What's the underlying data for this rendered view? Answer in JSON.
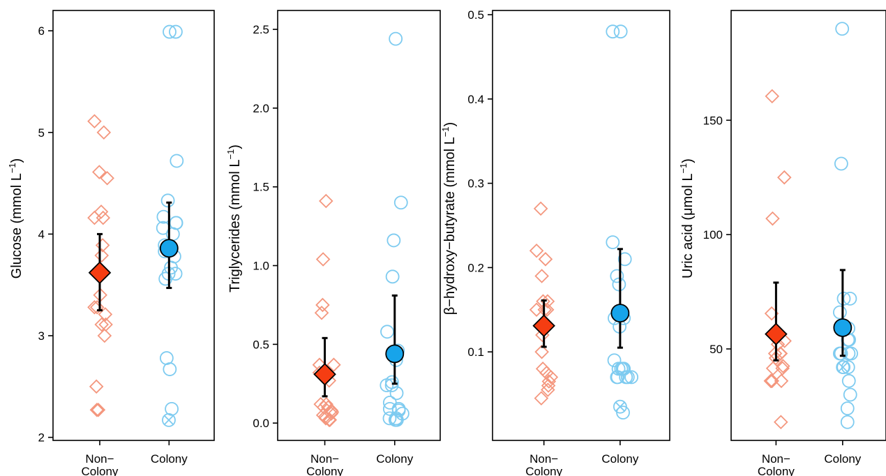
{
  "colors": {
    "noncolony_points": "#f4977e",
    "colony_points": "#7ecbf0",
    "noncolony_mean": "#f53d12",
    "colony_mean": "#17a4ea",
    "axis": "#000000"
  },
  "chart_data": [
    {
      "type": "scatter",
      "ylabel_main": "Glucose (mmol L",
      "ylabel_sup": "−1",
      "ylabel_end": ")",
      "ylim": [
        1.97,
        6.2
      ],
      "yticks": [
        2,
        3,
        4,
        5,
        6
      ],
      "ytick_labels": [
        "2",
        "3",
        "4",
        "5",
        "6"
      ],
      "categories": [
        "Non−\nColony",
        "Colony"
      ],
      "series": [
        {
          "name": "Non−Colony",
          "marker": "diamond",
          "points": [
            [
              -0.22,
              5.11
            ],
            [
              0.17,
              5.0
            ],
            [
              -0.02,
              4.61
            ],
            [
              0.31,
              4.55
            ],
            [
              0.06,
              4.22
            ],
            [
              -0.22,
              4.16
            ],
            [
              0.14,
              4.16
            ],
            [
              0.12,
              3.89
            ],
            [
              0.08,
              3.79
            ],
            [
              0.02,
              3.4
            ],
            [
              -0.22,
              3.28
            ],
            [
              -0.11,
              3.28
            ],
            [
              0.23,
              3.21
            ],
            [
              0.25,
              3.11
            ],
            [
              0.08,
              3.11
            ],
            [
              0.2,
              3.0
            ],
            [
              -0.14,
              2.5
            ],
            [
              -0.12,
              2.27
            ],
            [
              -0.06,
              2.27
            ]
          ],
          "mean": 3.62,
          "err_low": 3.25,
          "err_high": 4.0
        },
        {
          "name": "Colony",
          "marker": "circle",
          "points": [
            [
              0.02,
              5.99
            ],
            [
              0.28,
              5.99
            ],
            [
              0.32,
              4.72
            ],
            [
              -0.23,
              4.17
            ],
            [
              -0.05,
              4.33
            ],
            [
              0.29,
              4.11
            ],
            [
              0.3,
              4.11
            ],
            [
              -0.25,
              4.06
            ],
            [
              0.16,
              4.0
            ],
            [
              -0.18,
              3.89
            ],
            [
              -0.18,
              3.83
            ],
            [
              0.22,
              3.78
            ],
            [
              0.08,
              3.67
            ],
            [
              -0.02,
              3.61
            ],
            [
              0.27,
              3.61
            ],
            [
              -0.15,
              3.56
            ],
            [
              -0.1,
              2.78
            ],
            [
              0.03,
              2.67
            ],
            [
              0.11,
              2.28
            ],
            [
              -0.01,
              2.17
            ]
          ],
          "crossed": [
            [
              -0.01,
              2.17
            ]
          ],
          "mean": 3.86,
          "err_low": 3.47,
          "err_high": 4.31
        }
      ]
    },
    {
      "type": "scatter",
      "ylabel_main": "Triglycerides (mmol L",
      "ylabel_sup": "−1",
      "ylabel_end": ")",
      "ylim": [
        -0.11,
        2.62
      ],
      "yticks": [
        0,
        0.5,
        1.0,
        1.5,
        2.0,
        2.5
      ],
      "ytick_labels": [
        "0.0",
        "0.5",
        "1.0",
        "1.5",
        "2.0",
        "2.5"
      ],
      "categories": [
        "Non−\nColony",
        "Colony"
      ],
      "series": [
        {
          "name": "Non−Colony",
          "marker": "diamond",
          "points": [
            [
              0.05,
              1.41
            ],
            [
              -0.07,
              1.04
            ],
            [
              -0.09,
              0.75
            ],
            [
              -0.13,
              0.7
            ],
            [
              -0.22,
              0.37
            ],
            [
              0.37,
              0.37
            ],
            [
              -0.22,
              0.32
            ],
            [
              0.18,
              0.27
            ],
            [
              -0.17,
              0.12
            ],
            [
              0.06,
              0.12
            ],
            [
              -0.04,
              0.1
            ],
            [
              0.14,
              0.1
            ],
            [
              0.27,
              0.08
            ],
            [
              0.3,
              0.07
            ],
            [
              0.27,
              0.06
            ],
            [
              -0.07,
              0.05
            ],
            [
              0.01,
              0.04
            ],
            [
              0.04,
              0.03
            ],
            [
              0.18,
              0.02
            ],
            [
              0.21,
              0.02
            ]
          ],
          "mean": 0.31,
          "err_low": 0.17,
          "err_high": 0.54
        },
        {
          "name": "Colony",
          "marker": "circle",
          "points": [
            [
              0.04,
              2.44
            ],
            [
              0.26,
              1.4
            ],
            [
              -0.04,
              1.16
            ],
            [
              -0.09,
              0.93
            ],
            [
              -0.31,
              0.58
            ],
            [
              0.13,
              0.46
            ],
            [
              0.06,
              0.4
            ],
            [
              -0.11,
              0.26
            ],
            [
              -0.33,
              0.24
            ],
            [
              -0.12,
              0.24
            ],
            [
              -0.2,
              0.13
            ],
            [
              0.08,
              0.19
            ],
            [
              -0.2,
              0.09
            ],
            [
              0.17,
              0.09
            ],
            [
              0.17,
              0.08
            ],
            [
              0.32,
              0.06
            ],
            [
              -0.21,
              0.03
            ],
            [
              0.06,
              0.03
            ],
            [
              0.03,
              0.02
            ],
            [
              0.09,
              0.02
            ]
          ],
          "mean": 0.44,
          "err_low": 0.25,
          "err_high": 0.81
        }
      ]
    },
    {
      "type": "scatter",
      "ylabel_main": "β−hydroxy−butyrate (mmol L",
      "ylabel_sup": "−1",
      "ylabel_end": ")",
      "ylim": [
        -0.005,
        0.505
      ],
      "yticks": [
        0.1,
        0.2,
        0.3,
        0.4,
        0.5
      ],
      "ytick_labels": [
        "0.1",
        "0.2",
        "0.3",
        "0.4",
        "0.5"
      ],
      "categories": [
        "Non−\nColony",
        "Colony"
      ],
      "series": [
        {
          "name": "Non−Colony",
          "marker": "diamond",
          "points": [
            [
              -0.12,
              0.27
            ],
            [
              -0.28,
              0.22
            ],
            [
              0.06,
              0.21
            ],
            [
              -0.08,
              0.19
            ],
            [
              -0.03,
              0.16
            ],
            [
              0.14,
              0.16
            ],
            [
              -0.28,
              0.15
            ],
            [
              0.12,
              0.15
            ],
            [
              0.03,
              0.15
            ],
            [
              -0.06,
              0.12
            ],
            [
              -0.08,
              0.1
            ],
            [
              -0.04,
              0.08
            ],
            [
              0.1,
              0.075
            ],
            [
              0.27,
              0.07
            ],
            [
              0.19,
              0.065
            ],
            [
              0.17,
              0.06
            ],
            [
              0.15,
              0.055
            ],
            [
              -0.1,
              0.045
            ]
          ],
          "mean": 0.131,
          "err_low": 0.106,
          "err_high": 0.161
        },
        {
          "name": "Colony",
          "marker": "circle",
          "points": [
            [
              -0.28,
              0.48
            ],
            [
              0.02,
              0.48
            ],
            [
              -0.28,
              0.23
            ],
            [
              0.18,
              0.21
            ],
            [
              -0.12,
              0.19
            ],
            [
              -0.04,
              0.18
            ],
            [
              -0.21,
              0.14
            ],
            [
              0.14,
              0.14
            ],
            [
              -0.02,
              0.13
            ],
            [
              -0.22,
              0.09
            ],
            [
              -0.06,
              0.08
            ],
            [
              0.04,
              0.08
            ],
            [
              0.1,
              0.08
            ],
            [
              0.14,
              0.08
            ],
            [
              -0.12,
              0.07
            ],
            [
              -0.09,
              0.07
            ],
            [
              0.22,
              0.07
            ],
            [
              0.29,
              0.07
            ],
            [
              0.43,
              0.07
            ],
            [
              0.0,
              0.035
            ],
            [
              0.11,
              0.028
            ]
          ],
          "crossed": [
            [
              0.0,
              0.035
            ]
          ],
          "mean": 0.146,
          "err_low": 0.105,
          "err_high": 0.222
        }
      ]
    },
    {
      "type": "scatter",
      "ylabel_main": "Uric acid (",
      "ylabel_sup": "",
      "ylabel_end": "μmol L",
      "ylabel_sup2": "−1",
      "ylabel_end2": ")",
      "ylim": [
        10,
        198
      ],
      "yticks": [
        50,
        100,
        150
      ],
      "ytick_labels": [
        "50",
        "100",
        "150"
      ],
      "categories": [
        "Non−\nColony",
        "Colony"
      ],
      "series": [
        {
          "name": "Non−Colony",
          "marker": "diamond",
          "points": [
            [
              -0.17,
              160.5
            ],
            [
              0.36,
              125
            ],
            [
              -0.15,
              107
            ],
            [
              -0.19,
              65.5
            ],
            [
              0.37,
              53.5
            ],
            [
              0.08,
              52
            ],
            [
              -0.04,
              48
            ],
            [
              0.18,
              48
            ],
            [
              0.2,
              48
            ],
            [
              -0.01,
              46
            ],
            [
              0.3,
              42.5
            ],
            [
              0.28,
              41.5
            ],
            [
              -0.13,
              41.5
            ],
            [
              0.23,
              36
            ],
            [
              -0.2,
              36
            ],
            [
              -0.17,
              36
            ],
            [
              -0.23,
              36
            ],
            [
              0.21,
              18
            ]
          ],
          "mean": 56.5,
          "err_low": 45,
          "err_high": 79
        },
        {
          "name": "Colony",
          "marker": "circle",
          "points": [
            [
              -0.02,
              190
            ],
            [
              -0.06,
              131
            ],
            [
              0.32,
              72
            ],
            [
              0.05,
              72
            ],
            [
              -0.12,
              66
            ],
            [
              0.25,
              59
            ],
            [
              -0.07,
              48
            ],
            [
              -0.12,
              48
            ],
            [
              0.23,
              54
            ],
            [
              0.28,
              54
            ],
            [
              0.37,
              48
            ],
            [
              0.26,
              48
            ],
            [
              0.24,
              42
            ],
            [
              0.04,
              42
            ],
            [
              0.01,
              42
            ],
            [
              0.27,
              36
            ],
            [
              0.33,
              30
            ],
            [
              0.21,
              24
            ],
            [
              0.21,
              18
            ]
          ],
          "crossed": [
            [
              0.01,
              42
            ]
          ],
          "mean": 59.3,
          "err_low": 47,
          "err_high": 84.5
        }
      ]
    }
  ]
}
